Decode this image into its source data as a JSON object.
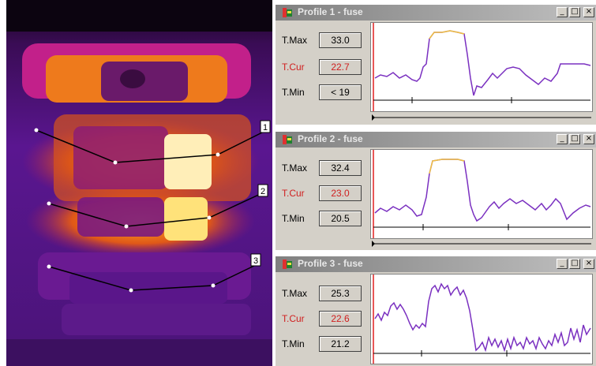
{
  "thermal": {
    "profile_markers": [
      "1",
      "2",
      "3"
    ]
  },
  "profiles": [
    {
      "title": "Profile 1 - fuse",
      "tmax_label": "T.Max",
      "tmax": "33.0",
      "tcur_label": "T.Cur",
      "tcur": "22.7",
      "tmin_label": "T.Min",
      "tmin": "< 19"
    },
    {
      "title": "Profile 2 - fuse",
      "tmax_label": "T.Max",
      "tmax": "32.4",
      "tcur_label": "T.Cur",
      "tcur": "23.0",
      "tmin_label": "T.Min",
      "tmin": "20.5"
    },
    {
      "title": "Profile 3 - fuse",
      "tmax_label": "T.Max",
      "tmax": "25.3",
      "tcur_label": "T.Cur",
      "tcur": "22.6",
      "tmin_label": "T.Min",
      "tmin": "21.2"
    }
  ],
  "window_buttons": {
    "minimize": "_",
    "maximize": "□",
    "close": "×"
  },
  "colors": {
    "cursor": "#e02020",
    "trace": "#7a30c0",
    "hot": "#ffe27a"
  }
}
